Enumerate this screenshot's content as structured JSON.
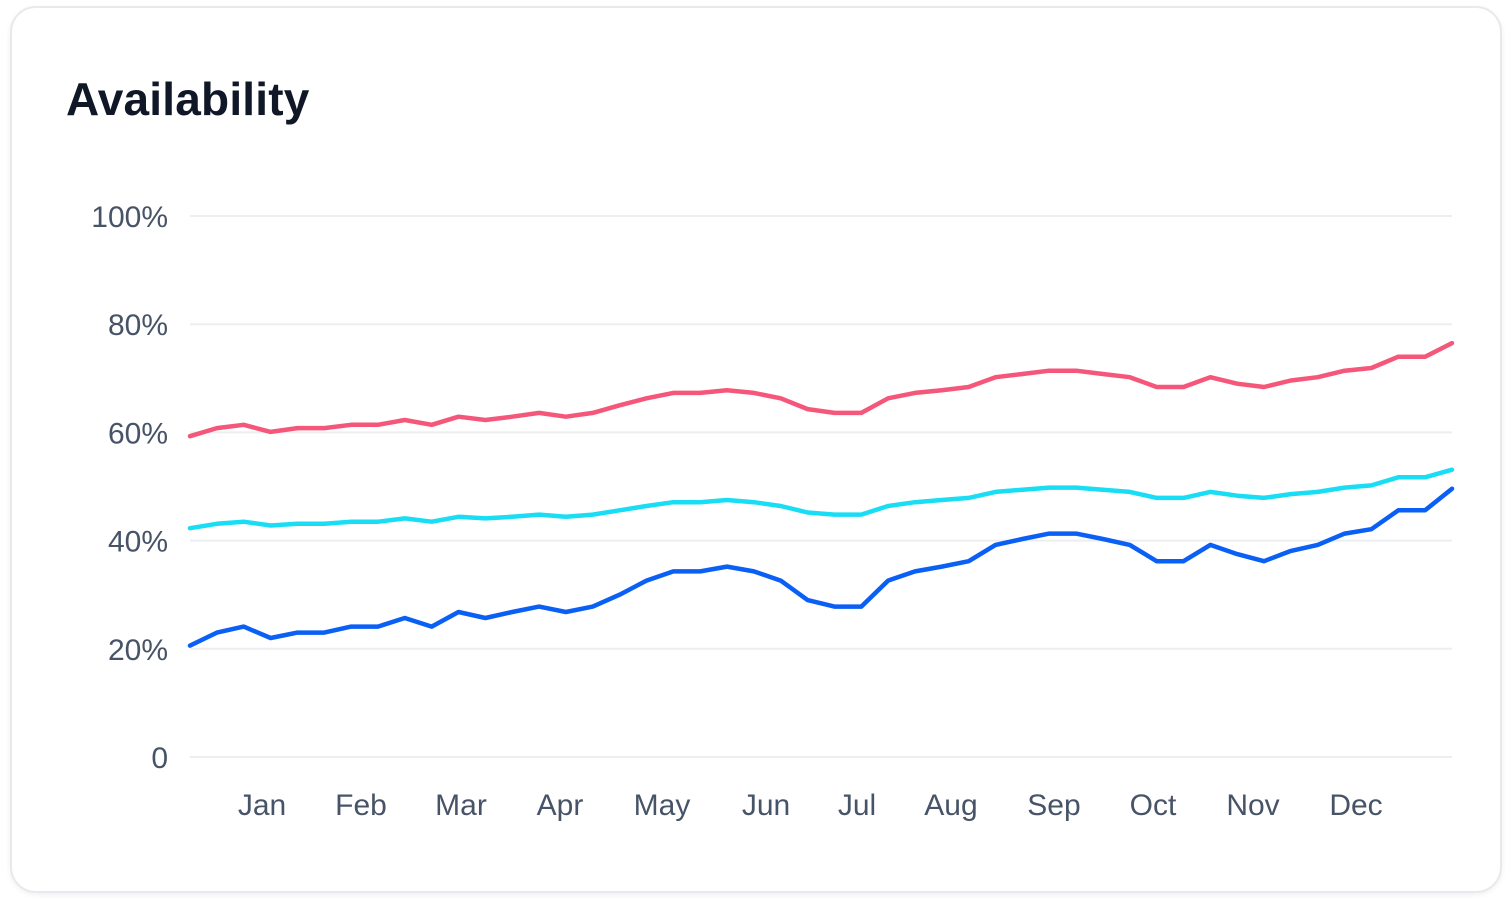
{
  "card": {
    "title": "Availability"
  },
  "chart_data": {
    "type": "line",
    "title": "Availability",
    "xlabel": "",
    "ylabel": "",
    "ylim": [
      0,
      100
    ],
    "yticks": [
      0,
      20,
      40,
      60,
      80,
      100
    ],
    "ytick_labels": [
      "0",
      "20%",
      "40%",
      "60%",
      "80%",
      "100%"
    ],
    "months": [
      "Jan",
      "Feb",
      "Mar",
      "Apr",
      "May",
      "Jun",
      "Jul",
      "Aug",
      "Sep",
      "Oct",
      "Nov",
      "Dec"
    ],
    "series": [
      {
        "name": "series-red",
        "color": "#f5577a",
        "values": [
          59.3,
          60.8,
          61.4,
          60.1,
          60.8,
          60.8,
          61.4,
          61.4,
          62.3,
          61.4,
          62.9,
          62.3,
          62.9,
          63.6,
          62.9,
          63.6,
          65.0,
          66.3,
          67.3,
          67.3,
          67.8,
          67.3,
          66.3,
          64.3,
          63.6,
          63.6,
          66.3,
          67.3,
          67.8,
          68.4,
          70.2,
          70.8,
          71.4,
          71.4,
          70.8,
          70.2,
          68.4,
          68.4,
          70.2,
          69.0,
          68.4,
          69.6,
          70.2,
          71.4,
          71.9,
          74.0,
          74.0,
          76.5
        ]
      },
      {
        "name": "series-cyan",
        "color": "#19ddf4",
        "values": [
          42.3,
          43.1,
          43.5,
          42.8,
          43.1,
          43.1,
          43.5,
          43.5,
          44.1,
          43.5,
          44.4,
          44.1,
          44.4,
          44.8,
          44.4,
          44.8,
          45.6,
          46.4,
          47.1,
          47.1,
          47.5,
          47.1,
          46.4,
          45.2,
          44.8,
          44.8,
          46.4,
          47.1,
          47.5,
          47.9,
          49.0,
          49.4,
          49.8,
          49.8,
          49.4,
          49.0,
          47.9,
          47.9,
          49.0,
          48.3,
          47.9,
          48.6,
          49.0,
          49.8,
          50.2,
          51.7,
          51.7,
          53.1
        ]
      },
      {
        "name": "series-blue",
        "color": "#0a5ff5",
        "values": [
          20.6,
          23.0,
          24.1,
          22.0,
          23.0,
          23.0,
          24.1,
          24.1,
          25.7,
          24.1,
          26.8,
          25.7,
          26.8,
          27.8,
          26.8,
          27.8,
          30.0,
          32.6,
          34.3,
          34.3,
          35.2,
          34.3,
          32.6,
          29.0,
          27.8,
          27.8,
          32.6,
          34.3,
          35.2,
          36.2,
          39.2,
          40.3,
          41.3,
          41.3,
          40.3,
          39.2,
          36.2,
          36.2,
          39.2,
          37.5,
          36.2,
          38.1,
          39.2,
          41.3,
          42.1,
          45.6,
          45.6,
          49.6
        ]
      }
    ]
  }
}
